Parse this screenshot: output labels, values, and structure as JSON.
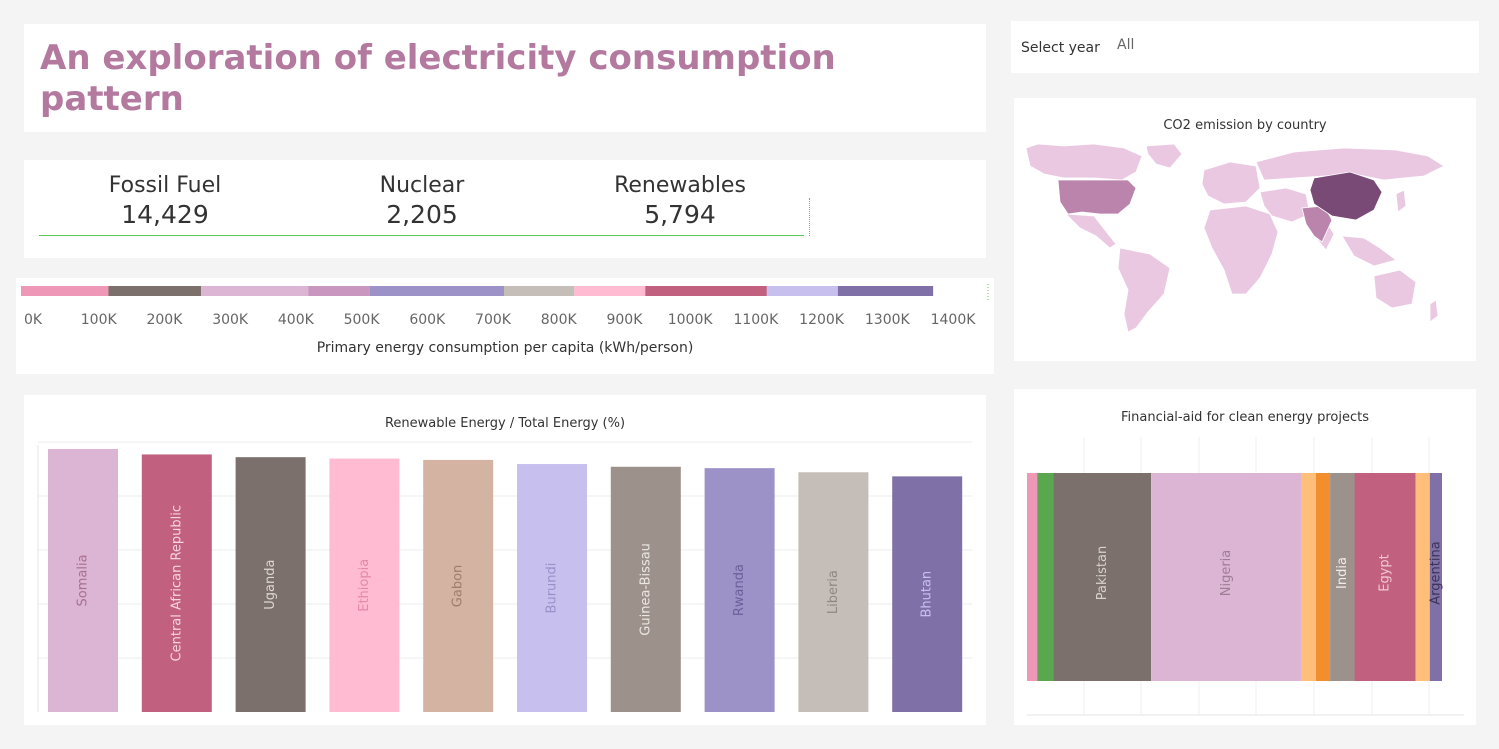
{
  "title": "An exploration of electricity consumption pattern",
  "filter": {
    "label": "Select year",
    "value": "All"
  },
  "kpis": [
    {
      "label": "Fossil Fuel",
      "value": "14,429"
    },
    {
      "label": "Nuclear",
      "value": "2,205"
    },
    {
      "label": "Renewables",
      "value": "5,794"
    }
  ],
  "map": {
    "title": "CO2 emission by  country"
  },
  "colors": {
    "accent": "#b3799f",
    "kpi_rule": "#59c459",
    "map_base": "#ebc8e2",
    "map_high": "#7a4a77",
    "map_mid": "#bb84ad"
  },
  "chart_data": [
    {
      "type": "bar",
      "orientation": "horizontal-stacked",
      "title": "",
      "xlabel": "Primary energy consumption per capita (kWh/person)",
      "tick_labels": [
        "0K",
        "100K",
        "200K",
        "300K",
        "400K",
        "500K",
        "600K",
        "700K",
        "800K",
        "900K",
        "1000K",
        "1100K",
        "1200K",
        "1300K",
        "1400K"
      ],
      "xlim": [
        0,
        1400000
      ],
      "segments": [
        {
          "value": 133000,
          "color": "#ee97b7"
        },
        {
          "value": 141000,
          "color": "#7b706c"
        },
        {
          "value": 163000,
          "color": "#dcb5d4"
        },
        {
          "value": 94000,
          "color": "#c996bf"
        },
        {
          "value": 204000,
          "color": "#9c92c7"
        },
        {
          "value": 107000,
          "color": "#c5bdb8"
        },
        {
          "value": 108000,
          "color": "#ffbbd2"
        },
        {
          "value": 185000,
          "color": "#c2607f"
        },
        {
          "value": 108000,
          "color": "#c7c0ee"
        },
        {
          "value": 145000,
          "color": "#7f71a8"
        }
      ]
    },
    {
      "type": "bar",
      "title": "Renewable Energy / Total Energy (%)",
      "xlabel": "",
      "ylabel": "",
      "ylim": [
        0,
        100
      ],
      "categories": [
        "Somalia",
        "Central African Republic",
        "Uganda",
        "Ethiopia",
        "Gabon",
        "Burundi",
        "Guinea-Bissau",
        "Rwanda",
        "Liberia",
        "Bhutan"
      ],
      "values": [
        96,
        94,
        93,
        92.5,
        92,
        90.5,
        89.5,
        89,
        87.5,
        86
      ],
      "colors": [
        "#dcb5d4",
        "#c2607f",
        "#7b706c",
        "#ffbbd2",
        "#d5b3a3",
        "#c7c0ee",
        "#9c918b",
        "#9c92c7",
        "#c5bdb8",
        "#7f71a8"
      ],
      "label_colors": [
        "#a8708f",
        "#f7d4e2",
        "#ddd6d2",
        "#e48aa9",
        "#9e7c70",
        "#9a90c8",
        "#ece7e3",
        "#6d609a",
        "#908783",
        "#c9c0f0"
      ]
    },
    {
      "type": "bar",
      "orientation": "stacked-width",
      "title": "Financial-aid for clean energy projects",
      "segments": [
        {
          "label": "",
          "value": 2.5,
          "color": "#ee97b7"
        },
        {
          "label": "",
          "value": 4,
          "color": "#59a74f"
        },
        {
          "label": "Pakistan",
          "value": 24,
          "color": "#7b706c"
        },
        {
          "label": "Nigeria",
          "value": 37,
          "color": "#dcb5d4"
        },
        {
          "label": "",
          "value": 3.5,
          "color": "#ffbf7a"
        },
        {
          "label": "",
          "value": 3.5,
          "color": "#f28e2b"
        },
        {
          "label": "India",
          "value": 6,
          "color": "#9c918b"
        },
        {
          "label": "Egypt",
          "value": 15,
          "color": "#c2607f"
        },
        {
          "label": "",
          "value": 3.5,
          "color": "#ffbf7a"
        },
        {
          "label": "Argentina",
          "value": 3,
          "color": "#7f71a8"
        }
      ],
      "label_colors": {
        "Pakistan": "#d8d1cd",
        "Nigeria": "#9d7e95",
        "India": "#f0ece9",
        "Egypt": "#f1c7d6",
        "Argentina": "#3c3358"
      }
    }
  ]
}
